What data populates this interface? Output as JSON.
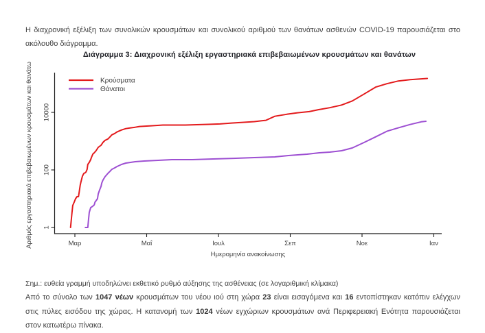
{
  "intro": {
    "text": "Η διαχρονική εξέλιξη των συνολικών κρουσμάτων και συνολικού αριθμού των θανάτων ασθενών COVID-19 παρουσιάζεται στο ακόλουθο διάγραμμα."
  },
  "note": {
    "text": "Σημ.: ευθεία γραμμή υποδηλώνει εκθετικό ρυθμό αύξησης της ασθένειας (σε λογαριθμική κλίμακα)"
  },
  "closing": {
    "segments": [
      {
        "text": "Από το σύνολο των ",
        "bold": false
      },
      {
        "text": "1047 νέων",
        "bold": true
      },
      {
        "text": " κρουσμάτων του νέου ιού στη χώρα ",
        "bold": false
      },
      {
        "text": "23",
        "bold": true
      },
      {
        "text": " είναι εισαγόμενα και ",
        "bold": false
      },
      {
        "text": "16",
        "bold": true
      },
      {
        "text": " εντοπίστηκαν κατόπιν ελέγχων στις πύλες εισόδου της χώρας. Η κατανομή των ",
        "bold": false
      },
      {
        "text": "1024",
        "bold": true
      },
      {
        "text": " νέων εγχώριων κρουσμάτων ανά Περιφερειακή Ενότητα παρουσιάζεται στον κατωτέρω πίνακα.",
        "bold": false
      }
    ]
  },
  "chart_data": {
    "type": "line",
    "title": "Διάγραμμα 3: Διαχρονική εξέλιξη εργαστηριακά επιβεβαιωμένων κρουσμάτων και θανάτων",
    "xlabel": "Ημερομηνία ανακοίνωσης",
    "ylabel": "Αριθμός εργαστηριακά επιβεβαιωμένων κρουσμάτων και θανάτων",
    "y_scale": "log",
    "ylim": [
      1,
      200000
    ],
    "grid": false,
    "legend_position": "top-left",
    "axis_color": "#1a1a1a",
    "x_ticks": [
      {
        "label": "Μαρ",
        "m": 0
      },
      {
        "label": "Μαΐ",
        "m": 2
      },
      {
        "label": "Ιουλ",
        "m": 4
      },
      {
        "label": "Σεπ",
        "m": 6
      },
      {
        "label": "Νοε",
        "m": 8
      },
      {
        "label": "Ιαν",
        "m": 10
      }
    ],
    "y_tick_values": [
      1,
      100,
      10000
    ],
    "series": [
      {
        "name": "Κρούσματα",
        "color": "#e31a1c",
        "points": [
          [
            -0.12,
            1
          ],
          [
            -0.08,
            3.3
          ],
          [
            -0.06,
            5.8
          ],
          [
            -0.02,
            7.6
          ],
          [
            0.02,
            10
          ],
          [
            0.06,
            11.8
          ],
          [
            0.1,
            11.8
          ],
          [
            0.12,
            17
          ],
          [
            0.15,
            30
          ],
          [
            0.17,
            39
          ],
          [
            0.21,
            61
          ],
          [
            0.25,
            76
          ],
          [
            0.29,
            80
          ],
          [
            0.31,
            85
          ],
          [
            0.34,
            105
          ],
          [
            0.36,
            155
          ],
          [
            0.4,
            183
          ],
          [
            0.44,
            228
          ],
          [
            0.46,
            268
          ],
          [
            0.5,
            352
          ],
          [
            0.54,
            394
          ],
          [
            0.59,
            465
          ],
          [
            0.65,
            610
          ],
          [
            0.73,
            720
          ],
          [
            0.78,
            900
          ],
          [
            0.84,
            1060
          ],
          [
            0.92,
            1190
          ],
          [
            0.98,
            1410
          ],
          [
            1.03,
            1660
          ],
          [
            1.11,
            1850
          ],
          [
            1.17,
            2070
          ],
          [
            1.3,
            2440
          ],
          [
            1.42,
            2730
          ],
          [
            1.55,
            2890
          ],
          [
            1.68,
            3050
          ],
          [
            1.8,
            3230
          ],
          [
            2.12,
            3420
          ],
          [
            2.45,
            3620
          ],
          [
            3.08,
            3620
          ],
          [
            3.71,
            3830
          ],
          [
            4.04,
            3970
          ],
          [
            4.36,
            4250
          ],
          [
            4.67,
            4500
          ],
          [
            5.0,
            4760
          ],
          [
            5.32,
            5300
          ],
          [
            5.57,
            7300
          ],
          [
            5.9,
            8600
          ],
          [
            6.2,
            9700
          ],
          [
            6.53,
            10600
          ],
          [
            6.78,
            12350
          ],
          [
            7.1,
            14500
          ],
          [
            7.43,
            18000
          ],
          [
            7.73,
            25000
          ],
          [
            8.06,
            43500
          ],
          [
            8.38,
            75500
          ],
          [
            8.69,
            99000
          ],
          [
            9.01,
            123000
          ],
          [
            9.34,
            137000
          ],
          [
            9.65,
            146000
          ],
          [
            9.82,
            151000
          ]
        ]
      },
      {
        "name": "Θάνατοι",
        "color": "#9d4fd2",
        "points": [
          [
            0.29,
            1
          ],
          [
            0.36,
            1
          ],
          [
            0.38,
            1.9
          ],
          [
            0.4,
            3.3
          ],
          [
            0.44,
            4.9
          ],
          [
            0.5,
            5.5
          ],
          [
            0.54,
            6.1
          ],
          [
            0.56,
            7.6
          ],
          [
            0.59,
            8.5
          ],
          [
            0.63,
            10
          ],
          [
            0.65,
            14.7
          ],
          [
            0.69,
            20.4
          ],
          [
            0.73,
            26.8
          ],
          [
            0.75,
            35.2
          ],
          [
            0.78,
            44
          ],
          [
            0.84,
            58
          ],
          [
            0.92,
            76
          ],
          [
            0.98,
            90
          ],
          [
            1.03,
            105
          ],
          [
            1.11,
            118
          ],
          [
            1.17,
            131
          ],
          [
            1.3,
            155
          ],
          [
            1.42,
            173
          ],
          [
            1.55,
            183
          ],
          [
            1.68,
            193
          ],
          [
            1.93,
            204
          ],
          [
            2.32,
            215
          ],
          [
            2.7,
            227
          ],
          [
            3.27,
            227
          ],
          [
            3.85,
            240
          ],
          [
            4.42,
            253
          ],
          [
            5.0,
            268
          ],
          [
            5.57,
            283
          ],
          [
            5.95,
            316
          ],
          [
            6.47,
            352
          ],
          [
            6.81,
            394
          ],
          [
            7.1,
            416
          ],
          [
            7.43,
            465
          ],
          [
            7.73,
            580
          ],
          [
            8.06,
            900
          ],
          [
            8.38,
            1410
          ],
          [
            8.69,
            2200
          ],
          [
            9.01,
            2890
          ],
          [
            9.34,
            3790
          ],
          [
            9.65,
            4700
          ],
          [
            9.78,
            4900
          ]
        ]
      }
    ]
  }
}
